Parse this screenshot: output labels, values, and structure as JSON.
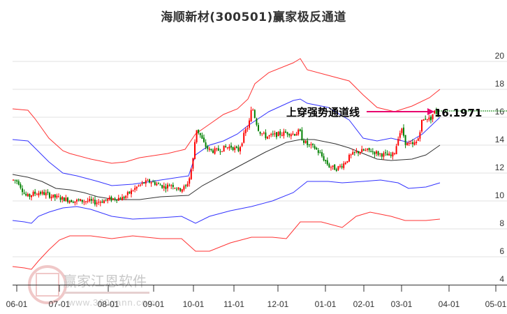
{
  "title": "海顺新材(300501)赢家极反通道",
  "watermark": {
    "name": "赢家江恩软件",
    "url": "www.360gann.com",
    "logo_chars": [
      "江",
      "赢",
      "恩",
      "家"
    ]
  },
  "colors": {
    "up": "#ff0000",
    "down": "#008000",
    "outer_band": "#ff3333",
    "inner_band": "#3333ff",
    "mid_line": "#333333",
    "arrow": "#e8006e",
    "ref_line": "#008000",
    "grid": "#e0e0e0"
  },
  "chart_data": {
    "type": "candlestick",
    "title": "海顺新材(300501)赢家极反通道",
    "xlabel": "",
    "ylabel": "",
    "ylim": [
      4,
      21
    ],
    "y_ticks": [
      4,
      6,
      8,
      10,
      12,
      14,
      16,
      18,
      20
    ],
    "x_ticks": [
      {
        "label": "06-01",
        "x": 24
      },
      {
        "label": "07-01",
        "x": 85
      },
      {
        "label": "08-01",
        "x": 155
      },
      {
        "label": "09-01",
        "x": 220
      },
      {
        "label": "10-01",
        "x": 277
      },
      {
        "label": "11-01",
        "x": 335
      },
      {
        "label": "12-01",
        "x": 398
      },
      {
        "label": "01-01",
        "x": 466
      },
      {
        "label": "02-01",
        "x": 521
      },
      {
        "label": "03-01",
        "x": 575
      },
      {
        "label": "04-01",
        "x": 643
      },
      {
        "label": "05-01",
        "x": 710
      }
    ],
    "grid": true,
    "annotation": {
      "text": "上穿强势通道线",
      "value": "16.1971",
      "price": 16.1971
    },
    "series": [
      {
        "name": "outer_upper",
        "color": "#ff3333",
        "points": [
          [
            18,
            16.6
          ],
          [
            40,
            16.5
          ],
          [
            50,
            15.9
          ],
          [
            70,
            14.5
          ],
          [
            90,
            13.6
          ],
          [
            100,
            13.4
          ],
          [
            130,
            13.0
          ],
          [
            160,
            12.7
          ],
          [
            180,
            12.8
          ],
          [
            200,
            13.1
          ],
          [
            240,
            13.4
          ],
          [
            265,
            13.7
          ],
          [
            280,
            14.8
          ],
          [
            300,
            15.5
          ],
          [
            320,
            16.2
          ],
          [
            340,
            16.6
          ],
          [
            355,
            17.3
          ],
          [
            365,
            18.4
          ],
          [
            385,
            19.2
          ],
          [
            420,
            19.9
          ],
          [
            430,
            20.2
          ],
          [
            440,
            19.4
          ],
          [
            470,
            19.0
          ],
          [
            500,
            18.6
          ],
          [
            520,
            17.6
          ],
          [
            540,
            16.7
          ],
          [
            565,
            16.4
          ],
          [
            590,
            16.8
          ],
          [
            615,
            17.4
          ],
          [
            630,
            18.0
          ]
        ]
      },
      {
        "name": "inner_upper",
        "color": "#3333ff",
        "points": [
          [
            18,
            14.4
          ],
          [
            40,
            14.3
          ],
          [
            50,
            13.8
          ],
          [
            70,
            12.8
          ],
          [
            90,
            12.0
          ],
          [
            110,
            11.8
          ],
          [
            140,
            11.4
          ],
          [
            160,
            11.1
          ],
          [
            190,
            11.2
          ],
          [
            230,
            11.5
          ],
          [
            270,
            11.8
          ],
          [
            280,
            13.3
          ],
          [
            300,
            14.0
          ],
          [
            320,
            14.3
          ],
          [
            340,
            14.8
          ],
          [
            355,
            15.4
          ],
          [
            370,
            15.9
          ],
          [
            385,
            16.4
          ],
          [
            420,
            17.2
          ],
          [
            430,
            17.3
          ],
          [
            440,
            17.0
          ],
          [
            470,
            16.7
          ],
          [
            500,
            15.8
          ],
          [
            520,
            14.5
          ],
          [
            540,
            14.3
          ],
          [
            560,
            14.5
          ],
          [
            585,
            14.2
          ],
          [
            605,
            14.8
          ],
          [
            630,
            16.0
          ]
        ]
      },
      {
        "name": "mid_line",
        "color": "#333333",
        "points": [
          [
            18,
            11.9
          ],
          [
            40,
            11.7
          ],
          [
            60,
            11.4
          ],
          [
            80,
            10.9
          ],
          [
            100,
            10.8
          ],
          [
            120,
            10.6
          ],
          [
            140,
            10.3
          ],
          [
            165,
            10.1
          ],
          [
            200,
            10.1
          ],
          [
            230,
            10.3
          ],
          [
            270,
            10.4
          ],
          [
            290,
            11.1
          ],
          [
            320,
            11.9
          ],
          [
            350,
            12.7
          ],
          [
            380,
            13.5
          ],
          [
            410,
            14.2
          ],
          [
            430,
            14.4
          ],
          [
            450,
            14.4
          ],
          [
            480,
            14.1
          ],
          [
            500,
            13.8
          ],
          [
            520,
            13.4
          ],
          [
            540,
            13.0
          ],
          [
            560,
            12.9
          ],
          [
            590,
            13.0
          ],
          [
            610,
            13.3
          ],
          [
            630,
            14.0
          ]
        ]
      },
      {
        "name": "inner_lower",
        "color": "#3333ff",
        "points": [
          [
            18,
            8.6
          ],
          [
            35,
            8.5
          ],
          [
            45,
            8.4
          ],
          [
            55,
            8.9
          ],
          [
            70,
            9.2
          ],
          [
            90,
            9.5
          ],
          [
            110,
            9.6
          ],
          [
            130,
            9.4
          ],
          [
            160,
            8.9
          ],
          [
            190,
            8.7
          ],
          [
            230,
            8.8
          ],
          [
            260,
            8.9
          ],
          [
            280,
            8.4
          ],
          [
            300,
            8.9
          ],
          [
            330,
            9.3
          ],
          [
            360,
            9.6
          ],
          [
            390,
            10.0
          ],
          [
            420,
            10.6
          ],
          [
            440,
            11.4
          ],
          [
            470,
            11.4
          ],
          [
            490,
            11.3
          ],
          [
            520,
            11.4
          ],
          [
            545,
            11.5
          ],
          [
            570,
            11.3
          ],
          [
            585,
            10.9
          ],
          [
            610,
            11.0
          ],
          [
            630,
            11.3
          ]
        ]
      },
      {
        "name": "outer_lower",
        "color": "#ff3333",
        "points": [
          [
            18,
            5.3
          ],
          [
            35,
            5.2
          ],
          [
            45,
            5.1
          ],
          [
            55,
            5.7
          ],
          [
            70,
            6.5
          ],
          [
            85,
            7.2
          ],
          [
            100,
            7.5
          ],
          [
            130,
            7.5
          ],
          [
            160,
            7.3
          ],
          [
            190,
            7.5
          ],
          [
            230,
            7.3
          ],
          [
            260,
            7.3
          ],
          [
            280,
            6.4
          ],
          [
            300,
            6.4
          ],
          [
            330,
            7.0
          ],
          [
            360,
            7.4
          ],
          [
            390,
            7.4
          ],
          [
            410,
            7.3
          ],
          [
            430,
            8.5
          ],
          [
            460,
            8.5
          ],
          [
            490,
            8.1
          ],
          [
            510,
            8.9
          ],
          [
            530,
            9.2
          ],
          [
            560,
            8.9
          ],
          [
            580,
            8.6
          ],
          [
            610,
            8.6
          ],
          [
            630,
            8.7
          ]
        ]
      }
    ],
    "candles_summary": {
      "start_price": 11.5,
      "jun_low": 10.0,
      "oct_spike_high": 16.3,
      "nov_high": 17.1,
      "jan_low": 12.1,
      "last_close": 16.1971,
      "last_high": 16.9
    }
  }
}
